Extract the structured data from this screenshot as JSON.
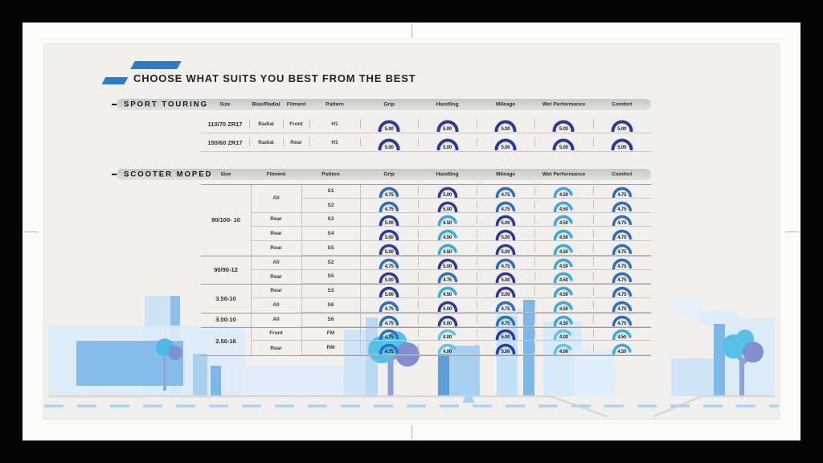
{
  "title": "CHOOSE WHAT SUITS YOU BEST FROM THE BEST",
  "accent_color": "#2f7cc4",
  "gauge_colors": {
    "5.00": "#2b3a9b",
    "4.75": "#2a6fc5",
    "4.50": "#38a9e1",
    "4.00": "#5cc5ea"
  },
  "sport_touring": {
    "label": "SPORT TOURING",
    "columns": [
      "Size",
      "Bias/Radial",
      "Fitment",
      "Pattern",
      "Grip",
      "Handling",
      "Mileage",
      "Wet Performance",
      "Comfort"
    ],
    "rows": [
      {
        "size": "110/70 ZR17",
        "bias_radial": "Radial",
        "fitment": "Front",
        "pattern": "H1",
        "ratings": [
          "5.00",
          "5.00",
          "5.00",
          "5.00",
          "5.00"
        ]
      },
      {
        "size": "150/60 ZR17",
        "bias_radial": "Radial",
        "fitment": "Rear",
        "pattern": "H1",
        "ratings": [
          "5.00",
          "5.00",
          "5.00",
          "5.00",
          "5.00"
        ]
      }
    ]
  },
  "scooter_moped": {
    "label": "SCOOTER MOPED",
    "columns": [
      "Size",
      "Fitment",
      "Pattern",
      "Grip",
      "Handling",
      "Mileage",
      "Wet Performance",
      "Comfort"
    ],
    "size_groups": [
      {
        "size": "90/100- 10",
        "fitment_groups": [
          {
            "fitment": "All",
            "rows": [
              {
                "pattern": "S1",
                "ratings": [
                  "4.75",
                  "5.00",
                  "4.75",
                  "4.50",
                  "4.75"
                ]
              },
              {
                "pattern": "S2",
                "ratings": [
                  "4.75",
                  "5.00",
                  "4.75",
                  "4.50",
                  "4.75"
                ]
              }
            ]
          },
          {
            "fitment": "Rear",
            "rows": [
              {
                "pattern": "S3",
                "ratings": [
                  "5.00",
                  "4.50",
                  "5.00",
                  "4.50",
                  "4.75"
                ]
              }
            ]
          },
          {
            "fitment": "Rear",
            "rows": [
              {
                "pattern": "S4",
                "ratings": [
                  "5.00",
                  "4.50",
                  "5.00",
                  "4.50",
                  "4.75"
                ]
              }
            ]
          },
          {
            "fitment": "Rear",
            "rows": [
              {
                "pattern": "S5",
                "ratings": [
                  "5.00",
                  "4.50",
                  "5.00",
                  "4.50",
                  "4.75"
                ]
              }
            ]
          }
        ]
      },
      {
        "size": "90/90-12",
        "fitment_groups": [
          {
            "fitment": "All",
            "rows": [
              {
                "pattern": "S2",
                "ratings": [
                  "4.75",
                  "5.00",
                  "4.75",
                  "4.50",
                  "4.75"
                ]
              }
            ]
          },
          {
            "fitment": "Rear",
            "rows": [
              {
                "pattern": "S5",
                "ratings": [
                  "5.00",
                  "4.75",
                  "5.00",
                  "4.50",
                  "4.75"
                ]
              }
            ]
          }
        ]
      },
      {
        "size": "3.50-10",
        "fitment_groups": [
          {
            "fitment": "Rear",
            "rows": [
              {
                "pattern": "S3",
                "ratings": [
                  "5.00",
                  "4.50",
                  "5.00",
                  "4.50",
                  "4.75"
                ]
              }
            ]
          },
          {
            "fitment": "All",
            "rows": [
              {
                "pattern": "S6",
                "ratings": [
                  "4.75",
                  "5.00",
                  "4.75",
                  "4.50",
                  "4.75"
                ]
              }
            ]
          }
        ]
      },
      {
        "size": "3.00-10",
        "fitment_groups": [
          {
            "fitment": "All",
            "rows": [
              {
                "pattern": "S6",
                "ratings": [
                  "4.75",
                  "5.00",
                  "4.75",
                  "4.50",
                  "4.75"
                ]
              }
            ]
          }
        ]
      },
      {
        "size": "2.50-16",
        "fitment_groups": [
          {
            "fitment": "Front",
            "rows": [
              {
                "pattern": "FM",
                "ratings": [
                  "4.75",
                  "4.00",
                  "5.00",
                  "4.00",
                  "4.50"
                ]
              }
            ]
          },
          {
            "fitment": "Rear",
            "rows": [
              {
                "pattern": "RM",
                "ratings": [
                  "4.75",
                  "4.00",
                  "5.00",
                  "4.00",
                  "4.50"
                ]
              }
            ]
          }
        ]
      }
    ]
  }
}
